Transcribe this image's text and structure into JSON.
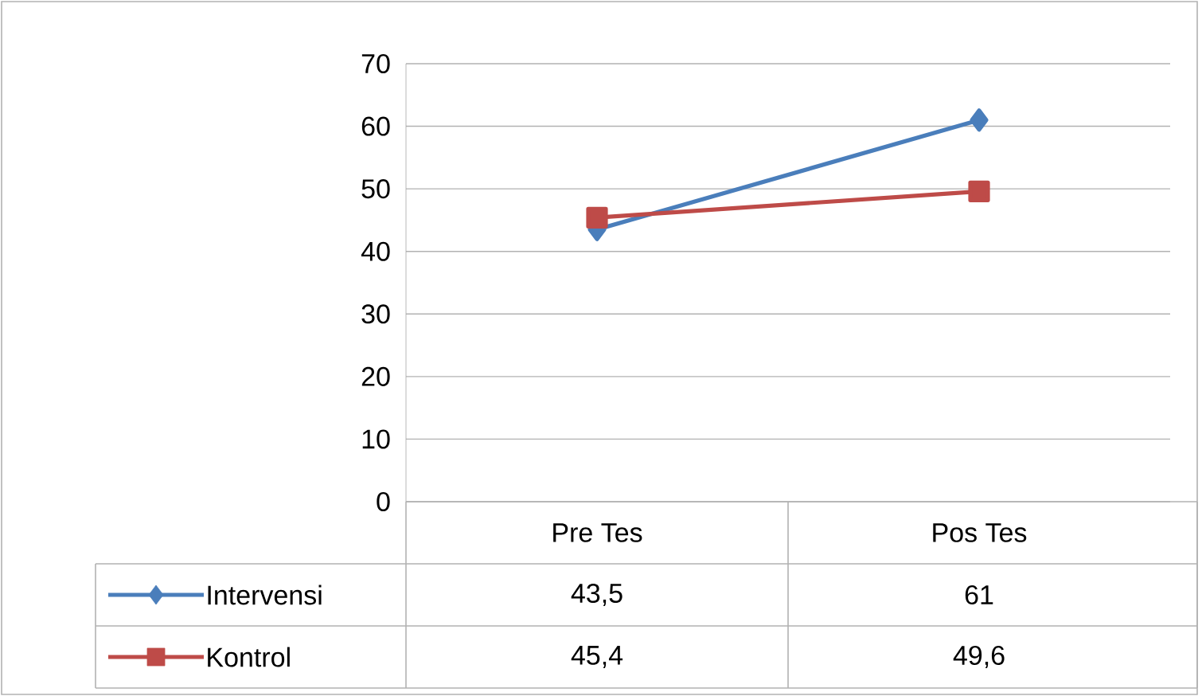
{
  "chart_data": {
    "type": "line",
    "categories": [
      "Pre Tes",
      "Pos Tes"
    ],
    "series": [
      {
        "name": "Intervensi",
        "color": "#4a7ebb",
        "marker": "diamond",
        "values": [
          43.5,
          61
        ],
        "value_labels": [
          "43,5",
          "61"
        ]
      },
      {
        "name": "Kontrol",
        "color": "#be4b48",
        "marker": "square",
        "values": [
          45.4,
          49.6
        ],
        "value_labels": [
          "45,4",
          "49,6"
        ]
      }
    ],
    "ylim": [
      0,
      70
    ],
    "yticks": [
      0,
      10,
      20,
      30,
      40,
      50,
      60,
      70
    ],
    "grid": "y",
    "legend": "bottom"
  }
}
